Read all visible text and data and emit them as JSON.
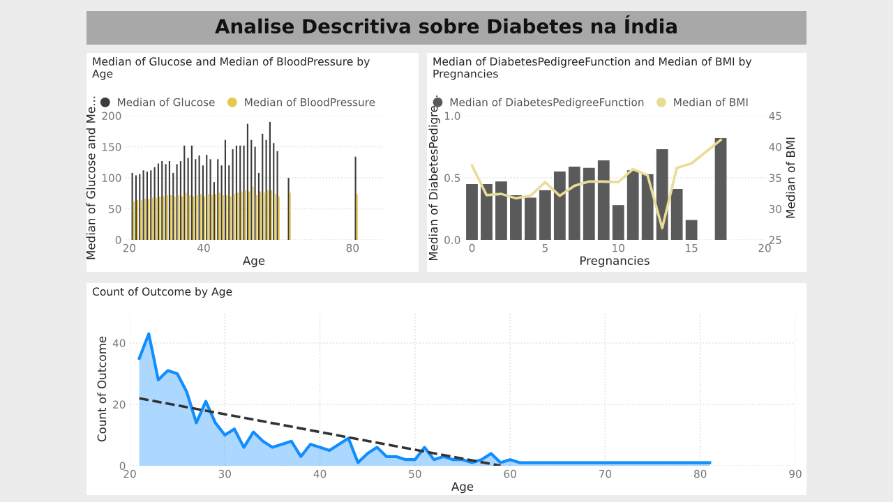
{
  "chart_data": [
    {
      "type": "other",
      "title": "Analise Descritiva sobre Diabetes na Índia"
    },
    {
      "type": "bar",
      "title": "Median of Glucose and Median of BloodPressure by\nAge",
      "xlabel": "Age",
      "ylabel": "Median of Glucose and Me...",
      "x": [
        21,
        22,
        23,
        24,
        25,
        26,
        27,
        28,
        29,
        30,
        31,
        32,
        33,
        34,
        35,
        36,
        37,
        38,
        39,
        40,
        41,
        42,
        43,
        44,
        45,
        46,
        47,
        48,
        49,
        50,
        51,
        52,
        53,
        54,
        55,
        56,
        57,
        58,
        59,
        60,
        63,
        81
      ],
      "series": [
        {
          "name": "Median of Glucose",
          "color": "#3c3c3c",
          "values": [
            108,
            104,
            106,
            112,
            110,
            112,
            117,
            123,
            127,
            122,
            127,
            108,
            122,
            127,
            152,
            132,
            152,
            130,
            136,
            120,
            137,
            130,
            93,
            130,
            120,
            161,
            120,
            146,
            152,
            152,
            152,
            187,
            161,
            150,
            108,
            171,
            161,
            190,
            156,
            143,
            100,
            134
          ]
        },
        {
          "name": "Median of BloodPressure",
          "color": "#e6c84c",
          "values": [
            62,
            64,
            64,
            66,
            66,
            68,
            68,
            70,
            70,
            72,
            72,
            70,
            72,
            70,
            76,
            72,
            70,
            72,
            74,
            70,
            74,
            72,
            74,
            76,
            72,
            72,
            70,
            74,
            76,
            78,
            80,
            78,
            86,
            72,
            78,
            76,
            80,
            80,
            74,
            70,
            76,
            74
          ]
        }
      ],
      "xlim": [
        19,
        88
      ],
      "xticks": [
        20,
        40,
        80
      ],
      "ylim": [
        0,
        200
      ],
      "yticks": [
        0,
        50,
        100,
        150,
        200
      ],
      "grid": "y",
      "legend": "top left"
    },
    {
      "type": "bar",
      "title": "Median of DiabetesPedigreeFunction and Median of BMI by\nPregnancies",
      "xlabel": "Pregnancies",
      "ylabel": "Median of DiabetesPedigre...",
      "y2label": "Median of BMI",
      "x": [
        0,
        1,
        2,
        3,
        4,
        5,
        6,
        7,
        8,
        9,
        10,
        11,
        12,
        13,
        14,
        15,
        17
      ],
      "series": [
        {
          "name": "Median of DiabetesPedigreeFunction",
          "color": "#5a5a5a",
          "values": [
            0.45,
            0.45,
            0.47,
            0.36,
            0.34,
            0.4,
            0.55,
            0.59,
            0.58,
            0.64,
            0.28,
            0.56,
            0.53,
            0.73,
            0.41,
            0.16,
            0.82
          ]
        },
        {
          "name": "Median of BMI",
          "type": "line",
          "axis": "y2",
          "color": "#e8dc96",
          "values": [
            37.0,
            32.2,
            32.4,
            31.7,
            32.1,
            34.3,
            32.1,
            33.7,
            34.4,
            34.4,
            34.3,
            36.4,
            35.4,
            26.9,
            36.6,
            37.3,
            41.1
          ]
        }
      ],
      "xlim": [
        -0.5,
        20
      ],
      "xticks": [
        0,
        5,
        10,
        15,
        20
      ],
      "ylim": [
        0,
        1
      ],
      "yticks": [
        {
          "value": 0,
          "label": "0.0"
        },
        0.5,
        {
          "value": 1,
          "label": "1.0"
        }
      ],
      "y2lim": [
        25,
        45
      ],
      "y2ticks": [
        25,
        30,
        35,
        40,
        45
      ],
      "grid": "y",
      "legend": "top left"
    },
    {
      "type": "area",
      "title": "Count of Outcome by Age",
      "xlabel": "Age",
      "ylabel": "Count of Outcome",
      "series": [
        {
          "color": "#118dff",
          "x": [
            21,
            22,
            23,
            24,
            25,
            26,
            27,
            28,
            29,
            30,
            31,
            32,
            33,
            34,
            35,
            36,
            37,
            38,
            39,
            40,
            41,
            42,
            43,
            44,
            45,
            46,
            47,
            48,
            49,
            50,
            51,
            52,
            53,
            54,
            55,
            56,
            57,
            58,
            59,
            60,
            61,
            81
          ],
          "values": [
            35,
            43,
            28,
            31,
            30,
            24,
            14,
            21,
            14,
            10,
            12,
            6,
            11,
            8,
            6,
            7,
            8,
            3,
            7,
            6,
            5,
            7,
            9,
            1,
            4,
            6,
            3,
            3,
            2,
            2,
            6,
            2,
            3,
            2,
            2,
            1,
            2,
            4,
            1,
            2,
            1,
            1
          ]
        },
        {
          "type": "line",
          "color": "#333333",
          "line_style": "dashed",
          "x": [
            21,
            59
          ],
          "values": [
            22,
            0
          ]
        }
      ],
      "xlim": [
        20,
        90
      ],
      "xticks": [
        20,
        30,
        40,
        50,
        60,
        70,
        80,
        90
      ],
      "ylim": [
        0,
        50
      ],
      "yticks": [
        0,
        20,
        40
      ],
      "grid": true
    }
  ]
}
